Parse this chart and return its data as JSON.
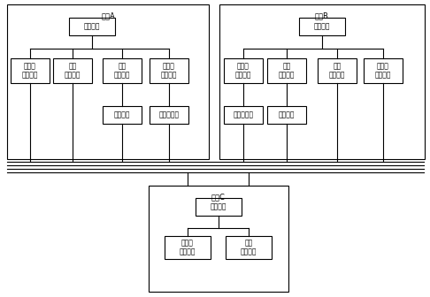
{
  "node_A_label": "节点A",
  "node_B_label": "节点B",
  "node_C_label": "节点C",
  "A_root": "应用界面",
  "A_children": [
    "位置坐\n标导界口",
    "定位\n电子地图",
    "导航\n显示测试",
    "多媒体\n显示接口"
  ],
  "A_sub_children": [
    "导览服务",
    "多媒体服务"
  ],
  "A_sub_parent_indices": [
    2,
    3
  ],
  "B_root": "应用界面",
  "B_children": [
    "数据库\n显示接口",
    "定位\n显示界面",
    "导航\n信号接口",
    "多媒体\n显示界口"
  ],
  "B_sub_children": [
    "位置队服务",
    "定位服务"
  ],
  "B_sub_parent_indices": [
    0,
    1
  ],
  "C_root": "管理界面",
  "C_children": [
    "多节点\n信息地图",
    "定位\n显示界口"
  ],
  "bg_color": "#ffffff",
  "box_color": "#ffffff",
  "box_edge": "#000000",
  "line_color": "#000000",
  "font_size": 5.5,
  "label_font_size": 6.0
}
